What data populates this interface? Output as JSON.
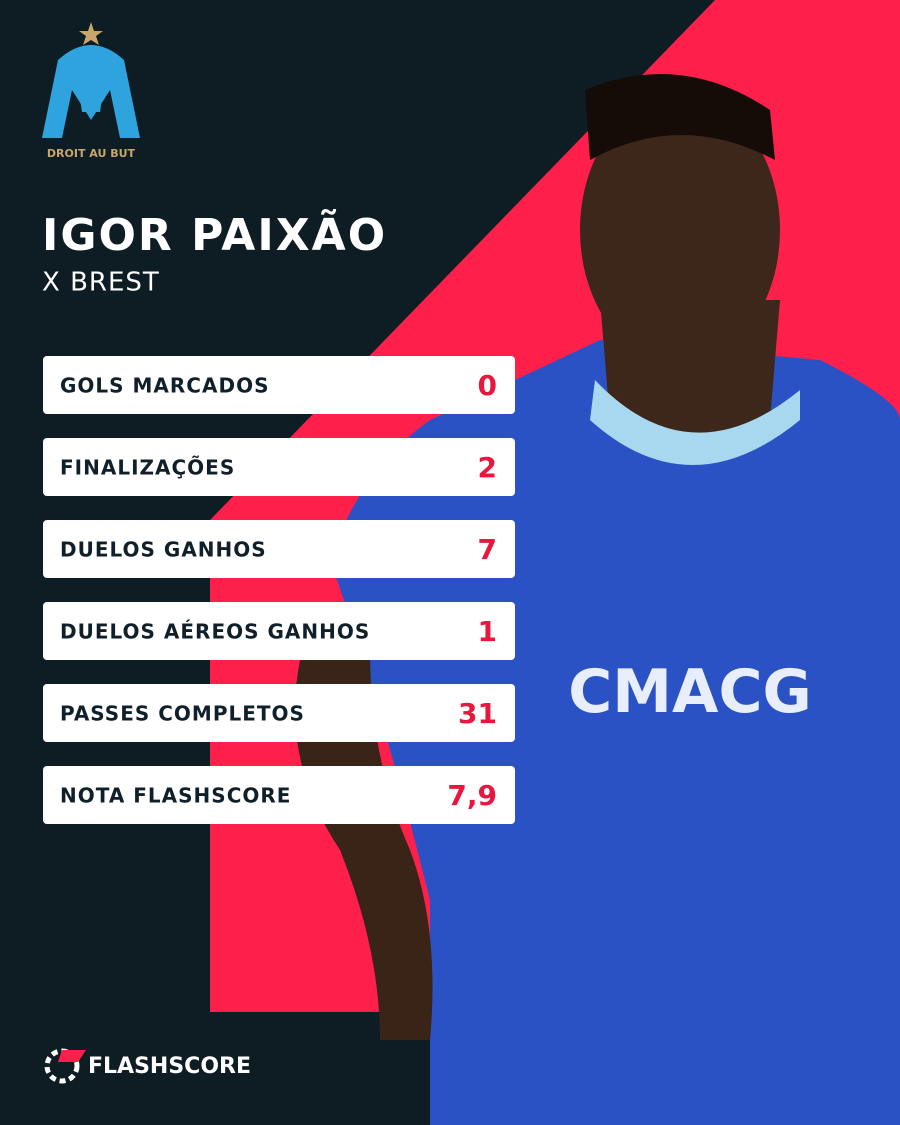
{
  "badge": {
    "motto": "DROIT AU BUT"
  },
  "header": {
    "title": "IGOR PAIXÃO",
    "subtitle": "X BREST"
  },
  "stats": [
    {
      "label": "GOLS MARCADOS",
      "value": "0"
    },
    {
      "label": "FINALIZAÇÕES",
      "value": "2"
    },
    {
      "label": "DUELOS GANHOS",
      "value": "7"
    },
    {
      "label": "DUELOS AÉREOS GANHOS",
      "value": "1"
    },
    {
      "label": "PASSES COMPLETOS",
      "value": "31"
    },
    {
      "label": "NOTA FLASHSCORE",
      "value": "7,9"
    }
  ],
  "footer": {
    "brand": "FLASHSCORE"
  }
}
